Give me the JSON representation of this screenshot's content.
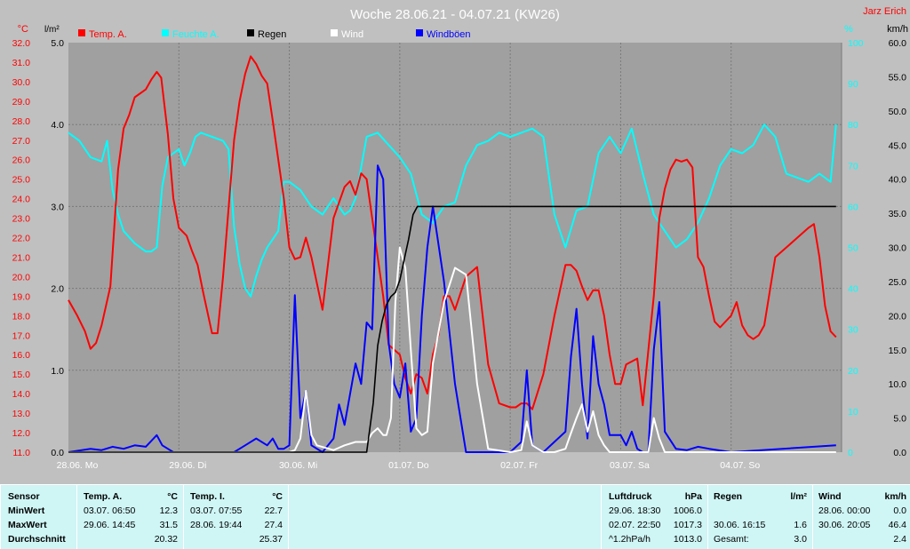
{
  "colors": {
    "background": "#c0c0c0",
    "plot_bg": "#a0a0a0",
    "temp": "#ff0000",
    "humidity": "#00ffff",
    "rain": "#000000",
    "wind": "#ffffff",
    "gust": "#0000ff",
    "panel": "#cff5f5"
  },
  "header": {
    "title": "Woche 28.06.21 - 04.07.21 (KW26)",
    "author": "Jarz Erich"
  },
  "chart_data": {
    "type": "line",
    "title": "Woche 28.06.21 - 04.07.21 (KW26)",
    "axes": {
      "temp_unit": "°C",
      "rain_unit": "l/m²",
      "humidity_unit": "%",
      "wind_unit": "km/h",
      "temp_ticks": [
        "32.0",
        "31.0",
        "30.0",
        "29.0",
        "28.0",
        "27.0",
        "26.0",
        "25.0",
        "24.0",
        "23.0",
        "22.0",
        "21.0",
        "20.0",
        "19.0",
        "18.0",
        "17.0",
        "16.0",
        "15.0",
        "14.0",
        "13.0",
        "12.0",
        "11.0"
      ],
      "rain_ticks": [
        "5.0",
        "4.0",
        "3.0",
        "2.0",
        "1.0",
        "0.0"
      ],
      "humidity_ticks": [
        "100",
        "90",
        "80",
        "70",
        "60",
        "50",
        "40",
        "30",
        "20",
        "10",
        "0"
      ],
      "wind_ticks": [
        "60.0",
        "55.0",
        "50.0",
        "45.0",
        "40.0",
        "35.0",
        "30.0",
        "25.0",
        "20.0",
        "15.0",
        "10.0",
        "5.0",
        "0.0"
      ],
      "x_ticks": [
        "28.06. Mo",
        "29.06. Di",
        "30.06. Mi",
        "01.07. Do",
        "02.07. Fr",
        "03.07. Sa",
        "04.07. So"
      ],
      "temp_range": [
        11,
        32
      ],
      "rain_range": [
        0,
        5
      ],
      "humidity_range": [
        0,
        100
      ],
      "wind_range": [
        0,
        60
      ],
      "days": 7
    },
    "legend": [
      "Temp. A.",
      "Feuchte A.",
      "Regen",
      "Wind",
      "Windböen"
    ],
    "series": [
      {
        "name": "Temp. A.",
        "axis": "temp",
        "x": [
          0,
          0.08,
          0.15,
          0.2,
          0.25,
          0.3,
          0.38,
          0.45,
          0.5,
          0.55,
          0.6,
          0.7,
          0.75,
          0.8,
          0.84,
          0.9,
          0.95,
          1.0,
          1.07,
          1.12,
          1.17,
          1.22,
          1.3,
          1.35,
          1.4,
          1.45,
          1.5,
          1.55,
          1.6,
          1.65,
          1.7,
          1.75,
          1.8,
          1.85,
          1.95,
          2.0,
          2.05,
          2.1,
          2.15,
          2.2,
          2.3,
          2.4,
          2.5,
          2.55,
          2.6,
          2.65,
          2.7,
          2.8,
          2.85,
          2.9,
          3.0,
          3.05,
          3.1,
          3.15,
          3.2,
          3.25,
          3.3,
          3.35,
          3.4,
          3.45,
          3.5,
          3.6,
          3.7,
          3.8,
          3.9,
          4.0,
          4.05,
          4.1,
          4.15,
          4.2,
          4.3,
          4.4,
          4.5,
          4.55,
          4.6,
          4.65,
          4.7,
          4.75,
          4.8,
          4.85,
          4.9,
          4.95,
          5.0,
          5.05,
          5.15,
          5.2,
          5.3,
          5.35,
          5.4,
          5.45,
          5.5,
          5.55,
          5.6,
          5.65,
          5.7,
          5.75,
          5.8,
          5.85,
          5.9,
          6.0,
          6.05,
          6.1,
          6.15,
          6.2,
          6.25,
          6.3,
          6.4,
          6.5,
          6.6,
          6.7,
          6.75,
          6.8,
          6.85,
          6.9,
          6.95
        ],
        "values": [
          18.8,
          18.0,
          17.2,
          16.3,
          16.6,
          17.5,
          19.5,
          25.5,
          27.6,
          28.3,
          29.2,
          29.6,
          30.1,
          30.5,
          30.2,
          27.3,
          24.0,
          22.5,
          22.1,
          21.3,
          20.6,
          19.2,
          17.1,
          17.1,
          20.0,
          23.5,
          27.0,
          29.0,
          30.4,
          31.3,
          30.9,
          30.3,
          29.9,
          28.0,
          24.0,
          21.5,
          20.9,
          21.0,
          22.0,
          21.0,
          18.3,
          23.0,
          24.6,
          24.9,
          24.2,
          25.3,
          25.0,
          21.0,
          19.0,
          16.5,
          16.0,
          14.8,
          14.0,
          15.0,
          14.8,
          14.0,
          16.0,
          17.0,
          19.0,
          19.0,
          18.3,
          20.0,
          20.5,
          15.5,
          13.5,
          13.3,
          13.3,
          13.5,
          13.5,
          13.2,
          15.0,
          18.0,
          20.6,
          20.6,
          20.3,
          19.5,
          18.8,
          19.3,
          19.3,
          18.0,
          16.0,
          14.5,
          14.5,
          15.5,
          15.8,
          13.4,
          19.0,
          23.0,
          24.5,
          25.5,
          26.0,
          25.9,
          26.0,
          25.6,
          21.0,
          20.5,
          19.0,
          17.7,
          17.4,
          18.0,
          18.7,
          17.5,
          17.0,
          16.8,
          17.0,
          17.5,
          21.0,
          21.5,
          22.0,
          22.5,
          22.7,
          21.0,
          18.5,
          17.2,
          16.9
        ]
      },
      {
        "name": "Feuchte A.",
        "axis": "humidity",
        "x": [
          0,
          0.1,
          0.2,
          0.3,
          0.35,
          0.4,
          0.45,
          0.5,
          0.6,
          0.7,
          0.75,
          0.8,
          0.85,
          0.9,
          1.0,
          1.05,
          1.1,
          1.15,
          1.2,
          1.3,
          1.4,
          1.45,
          1.5,
          1.55,
          1.6,
          1.65,
          1.7,
          1.75,
          1.8,
          1.85,
          1.9,
          1.95,
          2.0,
          2.1,
          2.2,
          2.3,
          2.4,
          2.5,
          2.55,
          2.6,
          2.7,
          2.8,
          2.9,
          3.0,
          3.1,
          3.2,
          3.3,
          3.4,
          3.5,
          3.6,
          3.7,
          3.8,
          3.9,
          4.0,
          4.1,
          4.2,
          4.3,
          4.4,
          4.5,
          4.6,
          4.7,
          4.8,
          4.9,
          5.0,
          5.1,
          5.2,
          5.3,
          5.4,
          5.5,
          5.6,
          5.7,
          5.8,
          5.9,
          6.0,
          6.1,
          6.2,
          6.3,
          6.4,
          6.5,
          6.6,
          6.7,
          6.8,
          6.9,
          6.95
        ],
        "values": [
          78,
          76,
          72,
          71,
          76,
          64,
          58,
          54,
          51,
          49,
          49,
          50,
          65,
          72,
          74,
          70,
          73,
          77,
          78,
          77,
          76,
          74,
          55,
          46,
          40,
          38,
          43,
          47,
          50,
          52,
          54,
          66,
          66,
          64,
          60,
          58,
          62,
          58,
          59,
          62,
          77,
          78,
          75,
          72,
          68,
          58,
          56,
          60,
          61,
          70,
          75,
          76,
          78,
          77,
          78,
          79,
          77,
          58,
          50,
          59,
          60,
          73,
          77,
          73,
          79,
          68,
          58,
          54,
          50,
          52,
          56,
          62,
          70,
          74,
          73,
          75,
          80,
          77,
          68,
          67,
          66,
          68,
          66,
          80
        ]
      },
      {
        "name": "Regen",
        "axis": "rain",
        "x": [
          0,
          2.7,
          2.76,
          2.8,
          2.84,
          2.88,
          2.92,
          2.96,
          3.0,
          3.04,
          3.08,
          3.12,
          3.16,
          3.2,
          3.24,
          6.95
        ],
        "values": [
          0.0,
          0.0,
          0.6,
          1.3,
          1.6,
          1.8,
          1.9,
          1.95,
          2.1,
          2.35,
          2.6,
          2.9,
          3.0,
          3.0,
          3.0,
          3.0
        ]
      },
      {
        "name": "Wind",
        "axis": "wind",
        "x": [
          0,
          2.0,
          2.05,
          2.1,
          2.15,
          2.2,
          2.25,
          2.4,
          2.5,
          2.6,
          2.7,
          2.75,
          2.8,
          2.85,
          2.88,
          2.92,
          2.96,
          3.0,
          3.05,
          3.1,
          3.15,
          3.2,
          3.25,
          3.3,
          3.4,
          3.5,
          3.6,
          3.7,
          3.8,
          4.0,
          4.1,
          4.15,
          4.2,
          4.3,
          4.4,
          4.5,
          4.55,
          4.6,
          4.65,
          4.7,
          4.75,
          4.8,
          4.85,
          4.9,
          5.0,
          5.25,
          5.3,
          5.35,
          5.4,
          6.95
        ],
        "values": [
          0,
          0,
          0.3,
          2.0,
          9.0,
          2.5,
          1.0,
          0.3,
          1.0,
          1.5,
          1.5,
          2.8,
          3.5,
          2.5,
          2.5,
          5.0,
          22.0,
          30.0,
          27.0,
          15.0,
          3.5,
          2.5,
          3.0,
          13.0,
          22.0,
          27.0,
          26.0,
          10.0,
          0.5,
          0,
          0.3,
          4.5,
          1.0,
          0,
          0,
          0.5,
          2.8,
          5.0,
          7.0,
          3.0,
          6.0,
          2.5,
          1.0,
          0,
          0,
          0,
          5.0,
          2.0,
          0,
          0
        ]
      },
      {
        "name": "Windböen",
        "axis": "wind",
        "x": [
          0,
          0.2,
          0.3,
          0.4,
          0.5,
          0.6,
          0.7,
          0.8,
          0.85,
          0.9,
          0.95,
          1.0,
          1.1,
          1.3,
          1.5,
          1.6,
          1.7,
          1.8,
          1.85,
          1.9,
          1.95,
          2.0,
          2.05,
          2.1,
          2.15,
          2.2,
          2.3,
          2.4,
          2.45,
          2.5,
          2.6,
          2.65,
          2.7,
          2.75,
          2.8,
          2.85,
          2.9,
          2.95,
          3.0,
          3.05,
          3.1,
          3.15,
          3.2,
          3.25,
          3.3,
          3.4,
          3.5,
          3.6,
          3.7,
          3.8,
          4.0,
          4.1,
          4.15,
          4.2,
          4.3,
          4.5,
          4.55,
          4.6,
          4.65,
          4.7,
          4.75,
          4.8,
          4.85,
          4.9,
          5.0,
          5.05,
          5.1,
          5.15,
          5.2,
          5.25,
          5.3,
          5.35,
          5.4,
          5.5,
          5.6,
          5.7,
          5.8,
          6.0,
          6.95
        ],
        "values": [
          0,
          0.5,
          0.3,
          0.8,
          0.5,
          1.0,
          0.8,
          2.5,
          1.0,
          0.5,
          0,
          0,
          0,
          0,
          0,
          1.0,
          2.0,
          1.0,
          2.0,
          0.5,
          0.5,
          1.0,
          23.0,
          5.0,
          9.0,
          1.0,
          0,
          2.0,
          7.0,
          4.0,
          13.0,
          10.0,
          19.0,
          18.0,
          42.0,
          40.0,
          16.0,
          10.0,
          8.0,
          13.0,
          3.0,
          5.0,
          20.0,
          30.0,
          36.0,
          25.0,
          10.0,
          0,
          0,
          0,
          0,
          1.5,
          12.0,
          1.0,
          0,
          3.0,
          14.0,
          21.0,
          10.0,
          2.0,
          17.0,
          10.0,
          7.0,
          2.5,
          2.5,
          1.0,
          3.0,
          0.5,
          0,
          0,
          15.0,
          22.0,
          3.0,
          0.5,
          0.3,
          0.8,
          0.5,
          0,
          1.0
        ]
      }
    ]
  },
  "summary": {
    "sensor": {
      "header": "Sensor",
      "min": "MinWert",
      "max": "MaxWert",
      "avg": "Durchschnitt"
    },
    "temp_a": {
      "title": "Temp. A.",
      "unit": "°C",
      "min_time": "03.07.  06:50",
      "min_val": "12.3",
      "max_time": "29.06.  14:45",
      "max_val": "31.5",
      "avg_val": "20.32"
    },
    "temp_i": {
      "title": "Temp. I.",
      "unit": "°C",
      "min_time": "03.07.  07:55",
      "min_val": "22.7",
      "max_time": "28.06.  19:44",
      "max_val": "27.4",
      "avg_val": "25.37"
    },
    "pressure": {
      "title": "Luftdruck",
      "unit": "hPa",
      "min_time": "29.06.  18:30",
      "min_val": "1006.0",
      "max_time": "02.07.  22:50",
      "max_val": "1017.3",
      "trend": "^1.2hPa/h",
      "current": "1013.0"
    },
    "rain": {
      "title": "Regen",
      "unit": "l/m²",
      "max_time": "30.06.  16:15",
      "max_val": "1.6",
      "total_label": "Gesamt:",
      "total_val": "3.0"
    },
    "wind": {
      "title": "Wind",
      "unit": "km/h",
      "min_time": "28.06.  00:00",
      "min_val": "0.0",
      "max_time": "30.06.  20:05",
      "max_val": "46.4",
      "avg_val": "2.4"
    }
  }
}
